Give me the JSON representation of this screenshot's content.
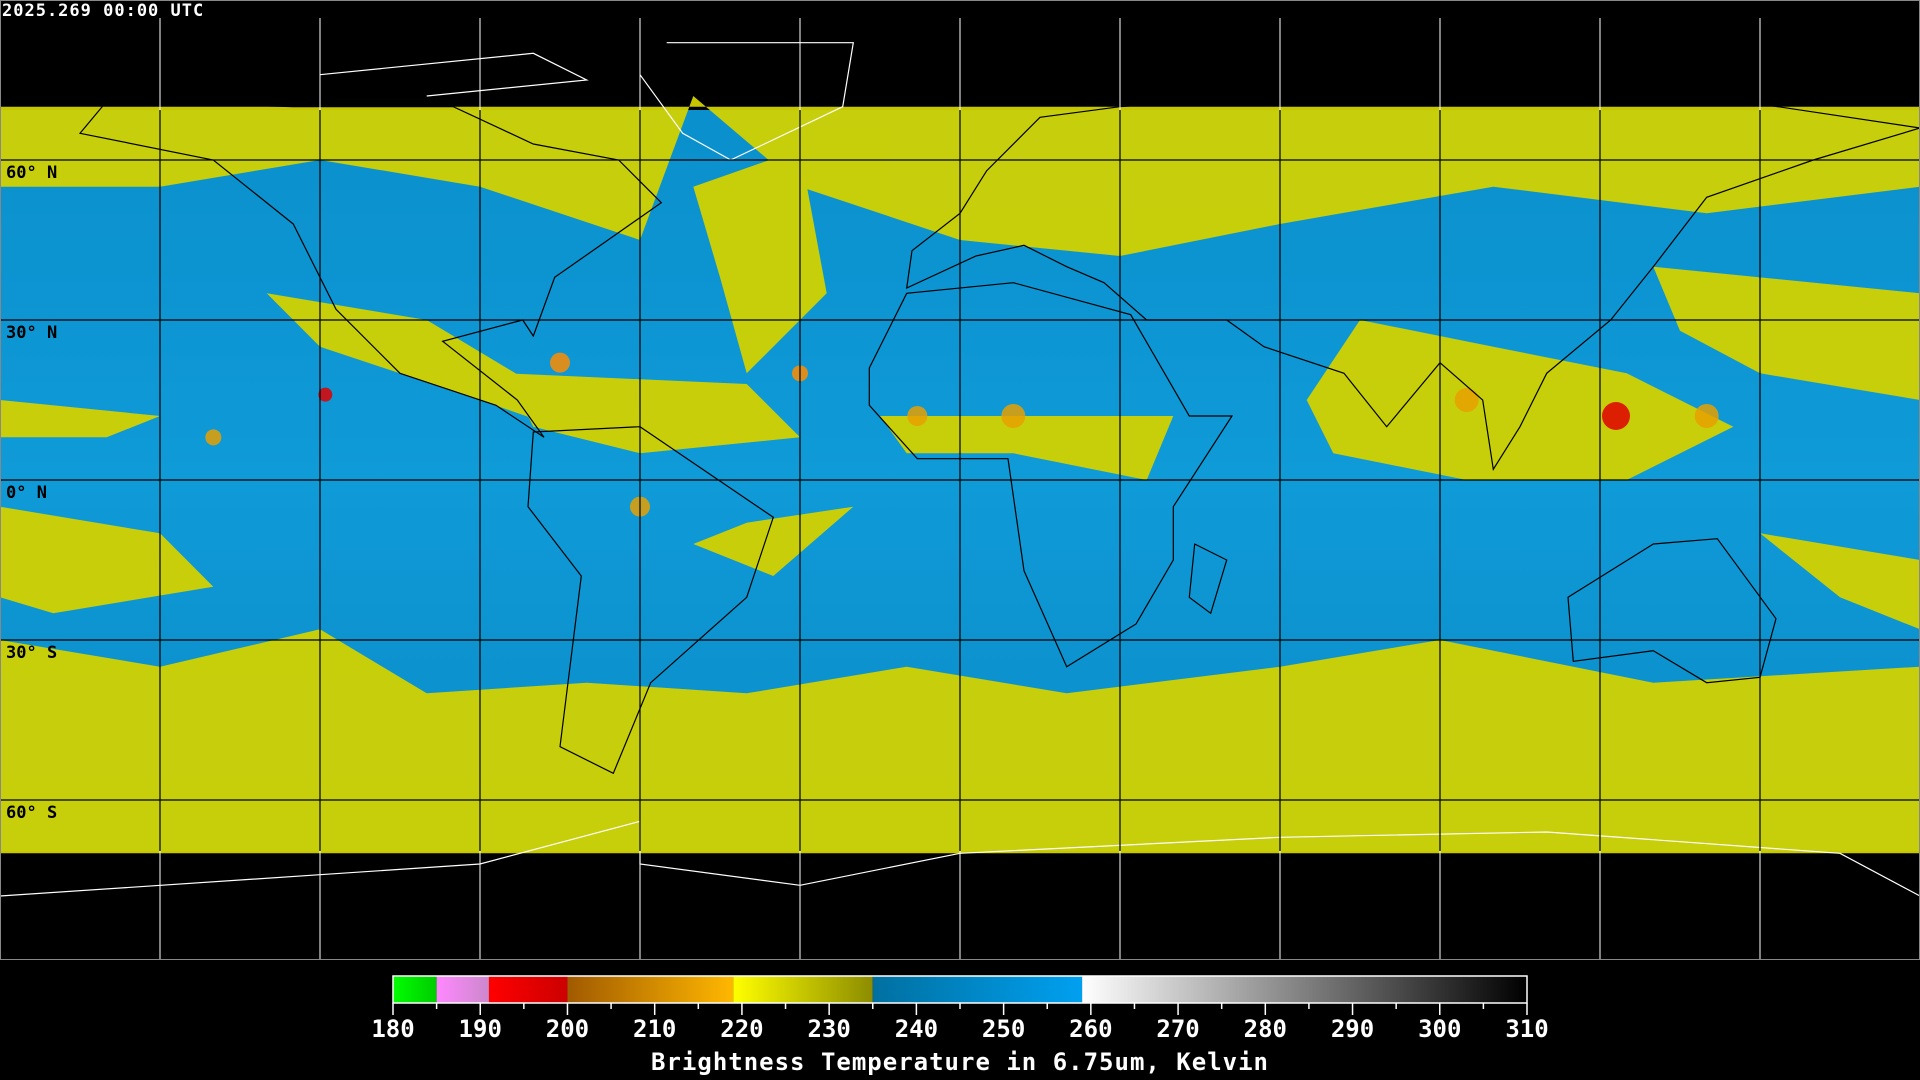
{
  "timestamp": "2025.269 00:00 UTC",
  "latitude_labels": [
    "60° N",
    "30° N",
    "0° N",
    "30° S",
    "60° S"
  ],
  "colors": {
    "background": "#000000",
    "moist_blue_low": "#0070a0",
    "moist_blue_high": "#00a0f0",
    "dry_yellow": "#d8d800",
    "grid": "#000000"
  },
  "colorbar": {
    "title": "Brightness Temperature in 6.75um, Kelvin",
    "min": 180,
    "max": 310,
    "tick_labels": [
      "180",
      "190",
      "200",
      "210",
      "220",
      "230",
      "240",
      "250",
      "260",
      "270",
      "280",
      "290",
      "300",
      "310"
    ],
    "segments": [
      {
        "from": 180,
        "to": 185,
        "start": "#00ff00",
        "end": "#00cc00"
      },
      {
        "from": 185,
        "to": 191,
        "start": "#ff88ff",
        "end": "#cc88cc"
      },
      {
        "from": 191,
        "to": 200,
        "start": "#ff0000",
        "end": "#cc0000"
      },
      {
        "from": 200,
        "to": 219,
        "start": "#a05a00",
        "end": "#ffb800"
      },
      {
        "from": 219,
        "to": 235,
        "start": "#ffff00",
        "end": "#8c8c00"
      },
      {
        "from": 235,
        "to": 259,
        "start": "#0070a0",
        "end": "#00a0f0"
      },
      {
        "from": 259,
        "to": 310,
        "start": "#ffffff",
        "end": "#000000"
      }
    ]
  }
}
